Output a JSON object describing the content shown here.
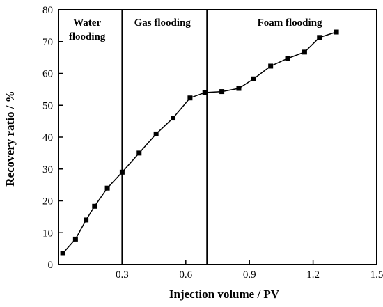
{
  "chart_data": {
    "type": "line",
    "title": "",
    "xlabel": "Injection volume / PV",
    "ylabel": "Recovery ratio / %",
    "xlim": [
      0,
      1.5
    ],
    "ylim": [
      0,
      80
    ],
    "xticks": [
      "0.3",
      "0.6",
      "0.9",
      "1.2",
      "1.5"
    ],
    "xtick_values": [
      0.3,
      0.6,
      0.9,
      1.2,
      1.5
    ],
    "yticks": [
      "0",
      "10",
      "20",
      "30",
      "40",
      "50",
      "60",
      "70",
      "80"
    ],
    "ytick_values": [
      0,
      10,
      20,
      30,
      40,
      50,
      60,
      70,
      80
    ],
    "grid": false,
    "marker": "square",
    "color": "#000000",
    "series": [
      {
        "x": [
          0.02,
          0.08,
          0.13,
          0.17,
          0.23,
          0.3,
          0.38,
          0.46,
          0.54,
          0.62,
          0.69,
          0.77,
          0.85,
          0.92,
          1.0,
          1.08,
          1.16,
          1.23,
          1.31
        ],
        "values": [
          3.5,
          8.0,
          14.0,
          18.3,
          24.0,
          29.0,
          35.0,
          41.0,
          46.0,
          52.3,
          54.0,
          54.3,
          55.3,
          58.3,
          62.3,
          64.7,
          66.7,
          71.3,
          73.0
        ]
      }
    ],
    "dividers": [
      0.3,
      0.7
    ],
    "regions": [
      {
        "lines": [
          "Water",
          "flooding"
        ],
        "x_center": 0.135
      },
      {
        "lines": [
          "Gas flooding"
        ],
        "x_center": 0.49
      },
      {
        "lines": [
          "Foam flooding"
        ],
        "x_center": 1.09
      }
    ]
  }
}
